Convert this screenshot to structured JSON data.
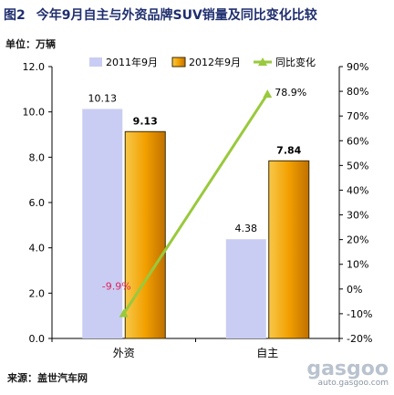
{
  "header": {
    "figure_label": "图2",
    "title": "今年9月自主与外资品牌SUV销量及同比变化比较",
    "unit": "单位：万辆"
  },
  "footer": {
    "source_label": "来源：",
    "source_value": "盖世汽车网"
  },
  "watermark": {
    "logo": "gasgoo",
    "url": "auto.gasgoo.com"
  },
  "chart_data": {
    "type": "bar",
    "categories": [
      "外资",
      "自主"
    ],
    "series": [
      {
        "name": "2011年9月",
        "type": "bar",
        "axis": "left",
        "values": [
          10.13,
          4.38
        ],
        "labels": [
          "10.13",
          "4.38"
        ],
        "color": "#c9cdf3"
      },
      {
        "name": "2012年9月",
        "type": "bar",
        "axis": "left",
        "values": [
          9.13,
          7.84
        ],
        "labels": [
          "9.13",
          "7.84"
        ],
        "color": "#f2a000"
      },
      {
        "name": "同比变化",
        "type": "line",
        "axis": "right",
        "values": [
          -9.9,
          78.9
        ],
        "labels": [
          "-9.9%",
          "78.9%"
        ],
        "color": "#99c93c"
      }
    ],
    "y_left": {
      "range": [
        0,
        12
      ],
      "ticks": [
        "0.0",
        "2.0",
        "4.0",
        "6.0",
        "8.0",
        "10.0",
        "12.0"
      ]
    },
    "y_right": {
      "range": [
        -20,
        90
      ],
      "ticks": [
        "-20%",
        "-10%",
        "0%",
        "10%",
        "20%",
        "30%",
        "40%",
        "50%",
        "60%",
        "70%",
        "80%",
        "90%"
      ]
    },
    "legend_position": "top",
    "grid": false,
    "colors": {
      "axis": "#000000",
      "negative_label": "#e0245e"
    }
  }
}
